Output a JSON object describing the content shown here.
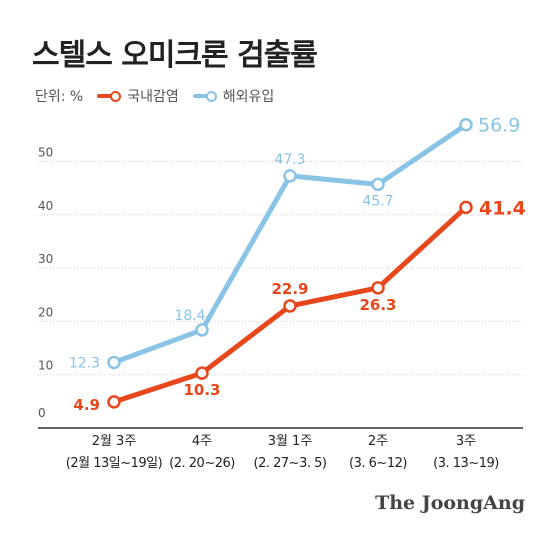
{
  "title": "스텔스 오미크론 검출률",
  "unit": "단위: %",
  "legend": [
    {
      "label": "국내감염",
      "color": "#e8471b"
    },
    {
      "label": "해외유입",
      "color": "#89c3e6"
    }
  ],
  "source": "The JoongAng",
  "chart_data": {
    "type": "line",
    "categories": [
      {
        "line1": "2월 3주",
        "line2": "(2월 13일~19일)"
      },
      {
        "line1": "4주",
        "line2": "(2. 20~26)"
      },
      {
        "line1": "3월 1주",
        "line2": "(2. 27~3. 5)"
      },
      {
        "line1": "2주",
        "line2": "(3. 6~12)"
      },
      {
        "line1": "3주",
        "line2": "(3. 13~19)"
      }
    ],
    "series": [
      {
        "name": "국내감염",
        "color": "#e8471b",
        "values": [
          4.9,
          10.3,
          22.9,
          26.3,
          41.4
        ],
        "labels": [
          "4.9",
          "10.3",
          "22.9",
          "26.3",
          "41.4"
        ]
      },
      {
        "name": "해외유입",
        "color": "#89c3e6",
        "values": [
          12.3,
          18.4,
          47.3,
          45.7,
          56.9
        ],
        "labels": [
          "12.3",
          "18.4",
          "47.3",
          "45.7",
          "56.9"
        ]
      }
    ],
    "yticks": [
      0,
      10,
      20,
      30,
      40,
      50
    ],
    "ylim": [
      0,
      60
    ],
    "grid": true
  }
}
